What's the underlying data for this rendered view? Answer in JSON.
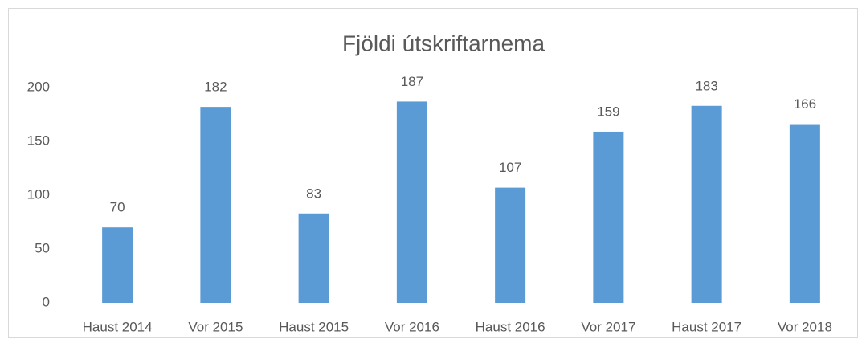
{
  "chart_data": {
    "type": "bar",
    "title": "Fjöldi útskriftarnema",
    "categories": [
      "Haust 2014",
      "Vor 2015",
      "Haust 2015",
      "Vor 2016",
      "Haust 2016",
      "Vor 2017",
      "Haust 2017",
      "Vor 2018"
    ],
    "values": [
      70,
      182,
      83,
      187,
      107,
      159,
      183,
      166
    ],
    "color": "#5b9bd5",
    "ylim": [
      0,
      200
    ],
    "yticks": [
      0,
      50,
      100,
      150,
      200
    ],
    "grid": false
  }
}
